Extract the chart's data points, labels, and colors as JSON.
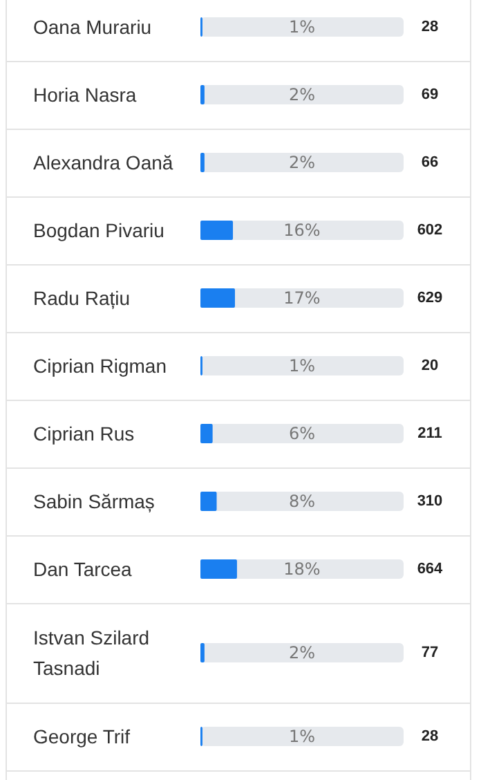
{
  "chart_data": {
    "type": "bar",
    "orientation": "horizontal",
    "categories": [
      "Oana Murariu",
      "Horia Nasra",
      "Alexandra Oană",
      "Bogdan Pivariu",
      "Radu Rațiu",
      "Ciprian Rigman",
      "Ciprian Rus",
      "Sabin Sărmaș",
      "Dan Tarcea",
      "Istvan Szilard Tasnadi",
      "George Trif"
    ],
    "values": [
      1,
      2,
      2,
      16,
      17,
      1,
      6,
      8,
      18,
      2,
      1
    ],
    "value_labels": [
      "1%",
      "2%",
      "2%",
      "16%",
      "17%",
      "1%",
      "6%",
      "8%",
      "18%",
      "2%",
      "1%"
    ],
    "color": "#1a7ff0",
    "xlim": [
      0,
      100
    ],
    "tick_labels": "y",
    "annotations": [
      "28",
      "69",
      "66",
      "602",
      "629",
      "20",
      "211",
      "310",
      "664",
      "77",
      "28"
    ]
  }
}
